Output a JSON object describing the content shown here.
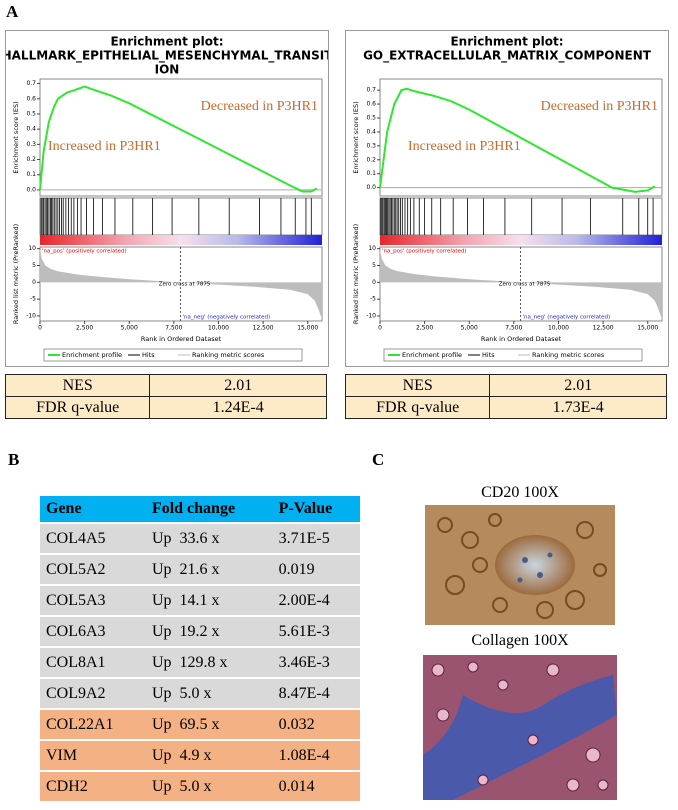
{
  "panel_labels": [
    "A",
    "B",
    "C"
  ],
  "gsea": [
    {
      "title_lines": [
        "Enrichment plot:",
        "HALLMARK_EPITHELIAL_MESENCHYMAL_TRANSIT",
        "ION"
      ],
      "es_label": "Enrichment score (ES)",
      "es_ylim": [
        -0.04,
        0.73
      ],
      "es_yticks": [
        {
          "value": 0,
          "label": "0.0"
        },
        0.1,
        0.2,
        0.3,
        0.4,
        0.5,
        0.6,
        0.7
      ],
      "es_x": [
        0,
        200,
        500,
        800,
        1000,
        1500,
        2000,
        2500,
        3000,
        4000,
        5000,
        6000,
        7000,
        8000,
        9000,
        10000,
        11000,
        12000,
        13000,
        14000,
        14700,
        15200,
        15500
      ],
      "es_values": [
        0,
        0.25,
        0.45,
        0.55,
        0.6,
        0.64,
        0.66,
        0.68,
        0.66,
        0.62,
        0.57,
        0.51,
        0.45,
        0.39,
        0.33,
        0.27,
        0.21,
        0.15,
        0.09,
        0.03,
        -0.01,
        -0.01,
        0.01
      ],
      "annotations": [
        "Decreased in P3HR1",
        "Increased in P3HR1"
      ],
      "hits": [
        60,
        120,
        200,
        280,
        350,
        420,
        500,
        580,
        650,
        720,
        800,
        900,
        1000,
        1100,
        1200,
        1300,
        1450,
        1600,
        1750,
        1900,
        2100,
        2300,
        2600,
        3000,
        3500,
        4200,
        5200,
        6300,
        7400,
        8900,
        10600,
        12300,
        13500,
        14300,
        14900,
        15200
      ],
      "pos_label": "'na_pos' (positively correlated)",
      "neg_label": "'na_neg' (negatively correlated)",
      "zero_cross_label": "Zero cross at 7875",
      "zero_cross": 7875,
      "rank_label": "Ranked list metric (PreRanked)",
      "rank_ylim": [
        -11.5,
        10.5
      ],
      "rank_yticks": [
        10,
        5,
        0,
        -5,
        -10
      ],
      "rank_x": [
        0,
        100,
        300,
        600,
        1000,
        2000,
        3000,
        5000,
        7875,
        10000,
        12000,
        14000,
        15000,
        15400,
        15600,
        15800
      ],
      "rank_values": [
        10,
        7,
        5,
        4,
        3.3,
        2.4,
        1.8,
        0.9,
        0,
        -0.7,
        -1.3,
        -2.2,
        -3.5,
        -5.5,
        -8,
        -11
      ],
      "xlim": [
        0,
        15800
      ],
      "xticks": [
        0,
        {
          "value": 2500,
          "label": "2,500"
        },
        {
          "value": 5000,
          "label": "5,000"
        },
        {
          "value": 7500,
          "label": "7,500"
        },
        {
          "value": 10000,
          "label": "10,000"
        },
        {
          "value": 12500,
          "label": "12,500"
        },
        {
          "value": 15000,
          "label": "15,000"
        }
      ],
      "x_label": "Rank in Ordered Dataset",
      "legend": [
        "Enrichment profile",
        "Hits",
        "Ranking metric scores"
      ],
      "stats": [
        [
          "NES",
          "2.01"
        ],
        [
          "FDR q-value",
          "1.24E-4"
        ]
      ]
    },
    {
      "title_lines": [
        "Enrichment plot:",
        "GO_EXTRACELLULAR_MATRIX_COMPONENT"
      ],
      "es_label": "Enrichment score (ES)",
      "es_ylim": [
        -0.06,
        0.78
      ],
      "es_yticks": [
        {
          "value": 0,
          "label": "0.0"
        },
        0.1,
        0.2,
        0.3,
        0.4,
        0.5,
        0.6,
        0.7
      ],
      "es_x": [
        0,
        200,
        400,
        600,
        800,
        1000,
        1200,
        1500,
        2000,
        3000,
        4000,
        5000,
        6000,
        7000,
        8000,
        9000,
        10000,
        11000,
        12000,
        13000,
        14300,
        15000,
        15400
      ],
      "es_values": [
        0,
        0.2,
        0.4,
        0.5,
        0.6,
        0.65,
        0.7,
        0.71,
        0.69,
        0.66,
        0.62,
        0.56,
        0.49,
        0.42,
        0.35,
        0.28,
        0.21,
        0.14,
        0.07,
        0.0,
        -0.03,
        -0.02,
        0.01
      ],
      "annotations": [
        "Decreased in P3HR1",
        "Increased in P3HR1"
      ],
      "hits": [
        50,
        110,
        170,
        240,
        300,
        360,
        430,
        500,
        570,
        640,
        720,
        800,
        880,
        960,
        1050,
        1150,
        1250,
        1400,
        1550,
        1700,
        1900,
        2200,
        2500,
        2900,
        3400,
        4100,
        4900,
        5800,
        7000,
        8500,
        10200,
        11800,
        13600,
        14500,
        15000,
        15300
      ],
      "pos_label": "'na_pos' (positively correlated)",
      "neg_label": "'na_neg' (negatively correlated)",
      "zero_cross_label": "Zero cross at 7875",
      "zero_cross": 7875,
      "rank_label": "Ranked list metric (PreRanked)",
      "rank_ylim": [
        -11.5,
        10.5
      ],
      "rank_yticks": [
        10,
        5,
        0,
        -5,
        -10
      ],
      "rank_x": [
        0,
        100,
        300,
        600,
        1000,
        2000,
        3000,
        5000,
        7875,
        10000,
        12000,
        14000,
        15000,
        15400,
        15600,
        15800
      ],
      "rank_values": [
        10,
        7,
        5,
        4,
        3.3,
        2.4,
        1.8,
        0.9,
        0,
        -0.7,
        -1.3,
        -2.2,
        -3.5,
        -5.5,
        -8,
        -11
      ],
      "xlim": [
        0,
        15800
      ],
      "xticks": [
        0,
        {
          "value": 2500,
          "label": "2,500"
        },
        {
          "value": 5000,
          "label": "5,000"
        },
        {
          "value": 7500,
          "label": "7,500"
        },
        {
          "value": 10000,
          "label": "10,000"
        },
        {
          "value": 12500,
          "label": "12,500"
        },
        {
          "value": 15000,
          "label": "15,000"
        }
      ],
      "x_label": "Rank in Ordered Dataset",
      "legend": [
        "Enrichment profile",
        "Hits",
        "Ranking metric scores"
      ],
      "stats": [
        [
          "NES",
          "2.01"
        ],
        [
          "FDR q-value",
          "1.73E-4"
        ]
      ]
    }
  ],
  "gene_table": {
    "header": [
      "Gene",
      "Fold change",
      "P-Value"
    ],
    "rows": [
      [
        "COL4A5",
        "Up  33.6 x",
        "3.71E-5"
      ],
      [
        "COL5A2",
        "Up  21.6 x",
        "0.019"
      ],
      [
        "COL5A3",
        "Up  14.1 x",
        "2.00E-4"
      ],
      [
        "COL6A3",
        "Up  19.2 x",
        "5.61E-3"
      ],
      [
        "COL8A1",
        "Up  129.8 x",
        "3.46E-3"
      ],
      [
        "COL9A2",
        "Up  5.0 x",
        "8.47E-4"
      ],
      [
        "COL22A1",
        "Up  69.5 x",
        "0.032"
      ],
      [
        "VIM",
        "Up  4.9 x",
        "1.08E-4"
      ],
      [
        "CDH2",
        "Up  5.0 x",
        "0.014"
      ]
    ]
  },
  "images": [
    "CD20 100X",
    "Collagen 100X"
  ]
}
